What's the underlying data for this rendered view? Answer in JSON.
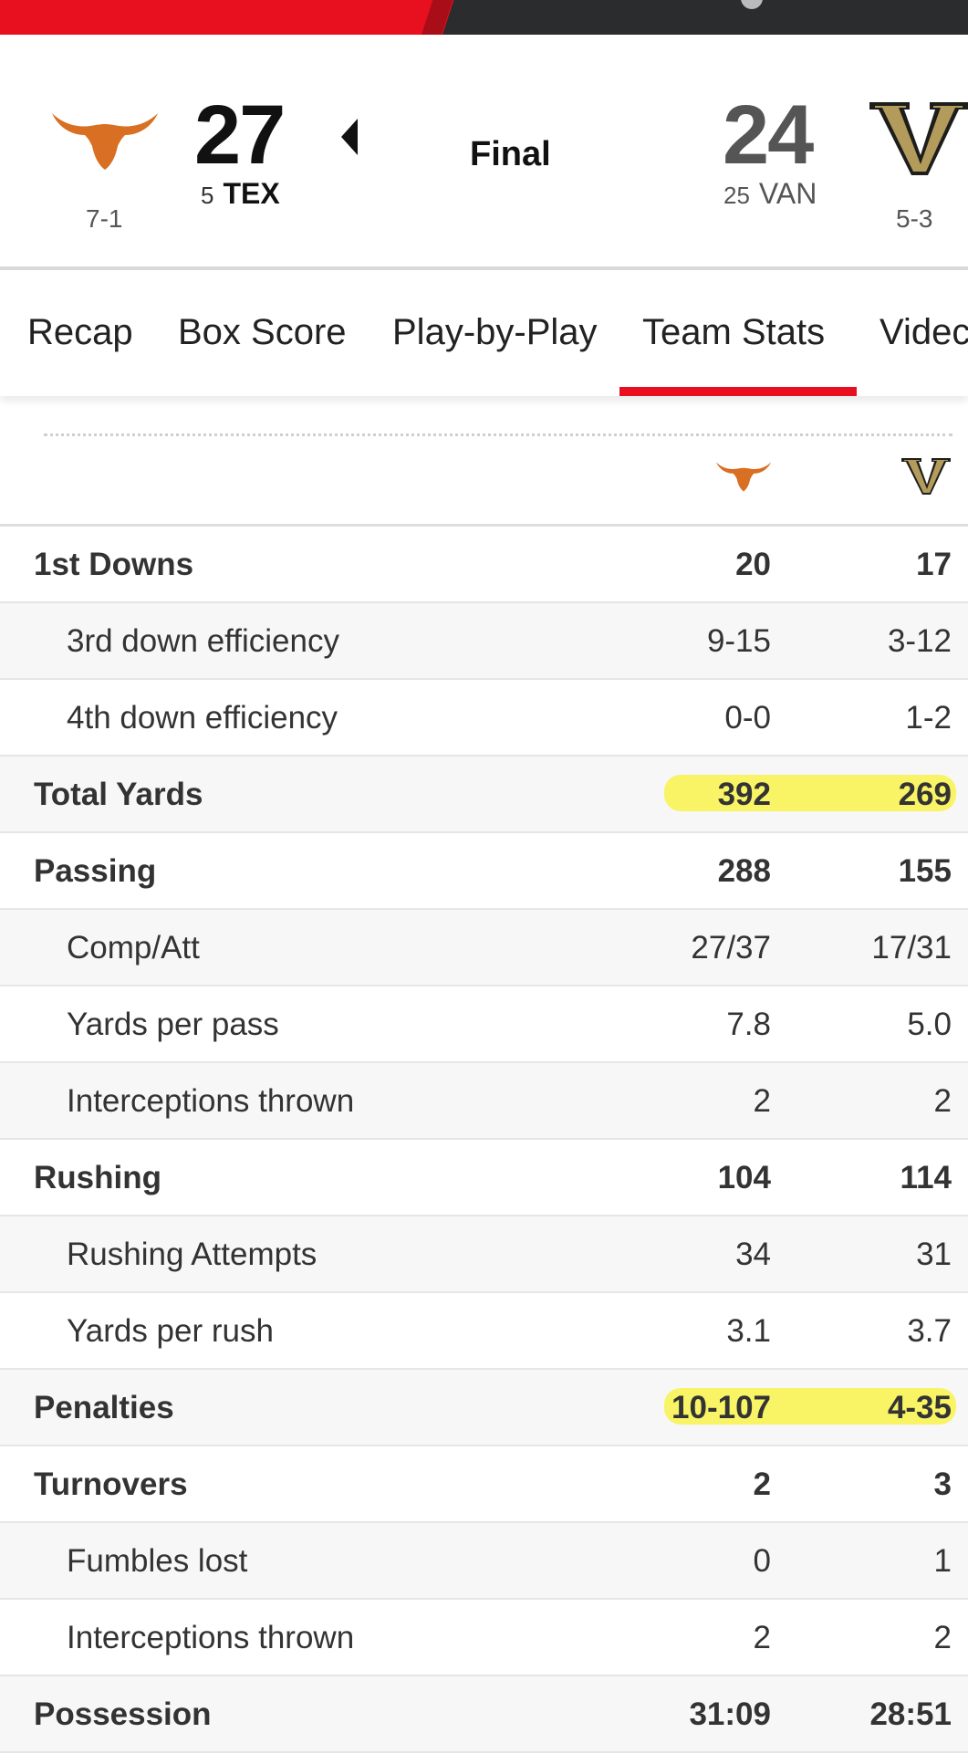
{
  "colors": {
    "accent": "#e8101f",
    "texas": "#d86f22",
    "vanderbilt": "#8a7a45",
    "highlight": "#f9f33c"
  },
  "game": {
    "home": {
      "record": "7-1",
      "score": "27",
      "rank": "5",
      "abbr": "TEX",
      "logo": "longhorn-logo"
    },
    "away": {
      "record": "5-3",
      "score": "24",
      "rank": "25",
      "abbr": "VAN",
      "logo": "vanderbilt-v-logo"
    },
    "status": "Final"
  },
  "tabs": [
    "Recap",
    "Box Score",
    "Play-by-Play",
    "Team Stats",
    "Videc"
  ],
  "active_tab": "Team Stats",
  "stats": [
    {
      "label": "1st Downs",
      "tex": "20",
      "van": "17",
      "type": "main"
    },
    {
      "label": "3rd down efficiency",
      "tex": "9-15",
      "van": "3-12",
      "type": "sub"
    },
    {
      "label": "4th down efficiency",
      "tex": "0-0",
      "van": "1-2",
      "type": "sub"
    },
    {
      "label": "Total Yards",
      "tex": "392",
      "van": "269",
      "type": "main",
      "highlighted": true
    },
    {
      "label": "Passing",
      "tex": "288",
      "van": "155",
      "type": "main"
    },
    {
      "label": "Comp/Att",
      "tex": "27/37",
      "van": "17/31",
      "type": "sub"
    },
    {
      "label": "Yards per pass",
      "tex": "7.8",
      "van": "5.0",
      "type": "sub"
    },
    {
      "label": "Interceptions thrown",
      "tex": "2",
      "van": "2",
      "type": "sub"
    },
    {
      "label": "Rushing",
      "tex": "104",
      "van": "114",
      "type": "main"
    },
    {
      "label": "Rushing Attempts",
      "tex": "34",
      "van": "31",
      "type": "sub"
    },
    {
      "label": "Yards per rush",
      "tex": "3.1",
      "van": "3.7",
      "type": "sub"
    },
    {
      "label": "Penalties",
      "tex": "10-107",
      "van": "4-35",
      "type": "main",
      "highlighted": true
    },
    {
      "label": "Turnovers",
      "tex": "2",
      "van": "3",
      "type": "main"
    },
    {
      "label": "Fumbles lost",
      "tex": "0",
      "van": "1",
      "type": "sub"
    },
    {
      "label": "Interceptions thrown",
      "tex": "2",
      "van": "2",
      "type": "sub"
    },
    {
      "label": "Possession",
      "tex": "31:09",
      "van": "28:51",
      "type": "main"
    }
  ]
}
